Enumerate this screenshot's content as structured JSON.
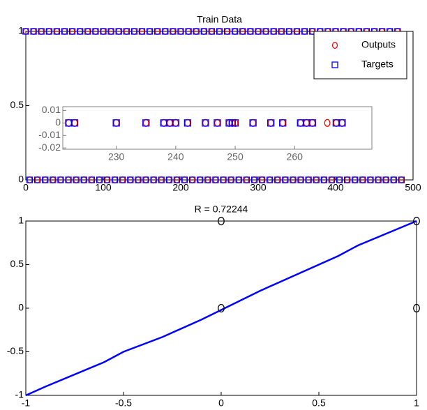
{
  "chart_data": [
    {
      "type": "scatter",
      "title": "Train Data",
      "x": [
        0,
        5,
        10,
        15,
        20,
        25,
        30,
        35,
        40,
        45,
        50,
        55,
        60,
        65,
        70,
        75,
        80,
        85,
        90,
        95,
        100,
        105,
        110,
        115,
        120,
        125,
        130,
        135,
        140,
        145,
        150,
        155,
        160,
        165,
        170,
        175,
        180,
        185,
        190,
        195,
        200,
        205,
        210,
        215,
        220,
        225,
        230,
        235,
        240,
        245,
        250,
        255,
        260,
        265,
        270,
        275,
        280,
        285,
        290,
        295,
        300,
        305,
        310,
        315,
        320,
        325,
        330,
        335,
        340,
        345,
        350,
        355,
        360,
        365,
        370,
        375,
        380,
        385,
        390,
        395,
        400,
        405,
        410,
        415,
        420,
        425,
        430,
        435,
        440,
        445,
        450,
        455,
        460,
        465,
        470,
        475,
        480,
        485
      ],
      "series": [
        {
          "name": "Outputs",
          "color": "#ff0000",
          "marker": "circle",
          "values": [
            1,
            0,
            1,
            0,
            1,
            0,
            1,
            0,
            1,
            0,
            1,
            0,
            1,
            0,
            1,
            0,
            1,
            0,
            1,
            0,
            1,
            0,
            1,
            0,
            1,
            0,
            1,
            0,
            1,
            0,
            1,
            0,
            1,
            0,
            1,
            0,
            1,
            0,
            1,
            0,
            1,
            0,
            1,
            0,
            1,
            0,
            1,
            0,
            1,
            0,
            1,
            0,
            1,
            0,
            1,
            0,
            1,
            0,
            1,
            0,
            1,
            0,
            1,
            0,
            1,
            0,
            1,
            0,
            1,
            0,
            1,
            0,
            1,
            0,
            1,
            0,
            1,
            0,
            1,
            0,
            1,
            0,
            1,
            0,
            1,
            0,
            1,
            0,
            1,
            0,
            1,
            0,
            1,
            0,
            1,
            0,
            1,
            0
          ]
        },
        {
          "name": "Targets",
          "color": "#0000ff",
          "marker": "square",
          "values": [
            1,
            0,
            1,
            0,
            1,
            0,
            1,
            0,
            1,
            0,
            1,
            0,
            1,
            0,
            1,
            0,
            1,
            0,
            1,
            0,
            1,
            0,
            1,
            0,
            1,
            0,
            1,
            0,
            1,
            0,
            1,
            0,
            1,
            0,
            1,
            0,
            1,
            0,
            1,
            0,
            1,
            0,
            1,
            0,
            1,
            0,
            1,
            0,
            1,
            0,
            1,
            0,
            1,
            0,
            1,
            0,
            1,
            0,
            1,
            0,
            1,
            0,
            1,
            0,
            1,
            0,
            1,
            0,
            1,
            0,
            1,
            0,
            1,
            0,
            1,
            0,
            1,
            0,
            1,
            0,
            1,
            0,
            1,
            0,
            1,
            0,
            1,
            0,
            1,
            0,
            1,
            0,
            1,
            0,
            1,
            0,
            1,
            0
          ]
        }
      ],
      "xlim": [
        0,
        500
      ],
      "xticks": [
        0,
        100,
        200,
        300,
        400,
        500
      ],
      "ylim": [
        0,
        1
      ],
      "yticks": [
        0,
        0.5,
        1
      ],
      "legend": "upper right"
    },
    {
      "type": "scatter",
      "series": [
        {
          "color": "#ff0000",
          "marker": "circle",
          "x": [
            222,
            223,
            230,
            235,
            238,
            239,
            240,
            242,
            245,
            247,
            249,
            249.5,
            250,
            253,
            256,
            258,
            261,
            262,
            263,
            265.5,
            267,
            268
          ],
          "values": [
            0,
            0,
            0,
            0,
            0,
            0,
            0,
            0,
            0,
            0,
            0,
            0,
            0,
            0,
            0,
            0,
            0,
            0,
            0,
            0,
            0,
            0
          ]
        },
        {
          "color": "#0000ff",
          "marker": "square",
          "x": [
            222,
            223,
            230,
            235,
            238,
            239,
            240,
            242,
            245,
            247,
            249,
            249.5,
            250,
            253,
            256,
            258,
            261,
            262,
            263,
            267,
            268
          ],
          "values": [
            0,
            0,
            0,
            0,
            0,
            0,
            0,
            0,
            0,
            0,
            0,
            0,
            0,
            0,
            0,
            0,
            0,
            0,
            0,
            0,
            0
          ]
        }
      ],
      "xlim": [
        221,
        273
      ],
      "xticks": [
        230,
        240,
        250,
        260
      ],
      "ylim": [
        -0.021,
        0.013
      ],
      "yticks": [
        0.01,
        0,
        -0.01,
        -0.02
      ]
    },
    {
      "type": "scatter",
      "title": "R = 0.72244",
      "series": [
        {
          "color": "#0000ff",
          "marker": "line",
          "x": [
            -1,
            -0.9,
            -0.6,
            -0.5,
            -0.3,
            -0.1,
            0,
            0.2,
            0.3,
            0.6,
            0.7,
            1
          ],
          "values": [
            -1,
            -0.9,
            -0.62,
            -0.5,
            -0.33,
            -0.13,
            -0.02,
            0.2,
            0.3,
            0.6,
            0.72,
            1
          ]
        },
        {
          "color": "#000000",
          "marker": "circle",
          "x": [
            0,
            0,
            1,
            1
          ],
          "values": [
            1,
            0,
            1,
            0
          ]
        }
      ],
      "xlim": [
        -1,
        1
      ],
      "xticks": [
        -1,
        -0.5,
        0,
        0.5,
        1
      ],
      "ylim": [
        -1,
        1
      ],
      "yticks": [
        -1,
        -0.5,
        0,
        0.5,
        1
      ]
    }
  ]
}
